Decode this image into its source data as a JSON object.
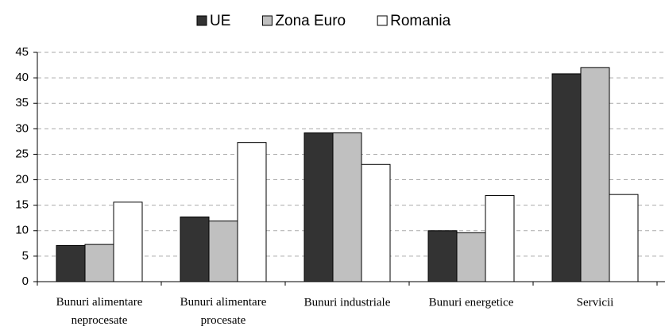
{
  "chart_data": {
    "type": "bar",
    "categories": [
      "Bunuri alimentare neprocesate",
      "Bunuri alimentare procesate",
      "Bunuri industriale",
      "Bunuri energetice",
      "Servicii"
    ],
    "series": [
      {
        "name": "UE",
        "color": "#333333",
        "values": [
          7.1,
          12.7,
          29.2,
          10.0,
          40.8
        ]
      },
      {
        "name": "Zona Euro",
        "color": "#c0c0c0",
        "values": [
          7.3,
          11.9,
          29.2,
          9.6,
          42.0
        ]
      },
      {
        "name": "Romania",
        "color": "#ffffff",
        "values": [
          15.6,
          27.3,
          23.0,
          16.9,
          17.1
        ]
      }
    ],
    "ylim": [
      0,
      45
    ],
    "yticks": [
      0,
      5,
      10,
      15,
      20,
      25,
      30,
      35,
      40,
      45
    ],
    "grid": true,
    "legend": "top"
  }
}
